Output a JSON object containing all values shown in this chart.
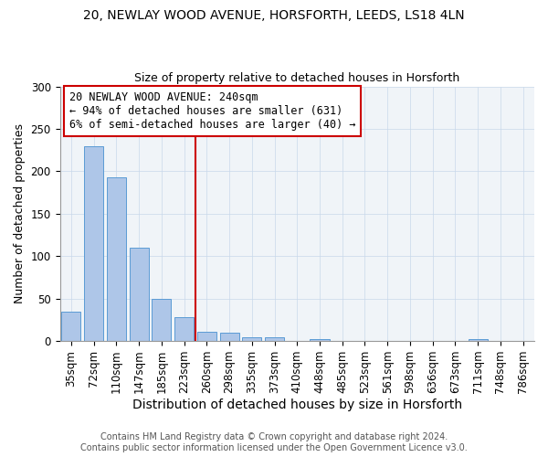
{
  "title1": "20, NEWLAY WOOD AVENUE, HORSFORTH, LEEDS, LS18 4LN",
  "title2": "Size of property relative to detached houses in Horsforth",
  "xlabel": "Distribution of detached houses by size in Horsforth",
  "ylabel": "Number of detached properties",
  "bin_labels": [
    "35sqm",
    "72sqm",
    "110sqm",
    "147sqm",
    "185sqm",
    "223sqm",
    "260sqm",
    "298sqm",
    "335sqm",
    "373sqm",
    "410sqm",
    "448sqm",
    "485sqm",
    "523sqm",
    "561sqm",
    "598sqm",
    "636sqm",
    "673sqm",
    "711sqm",
    "748sqm",
    "786sqm"
  ],
  "bar_heights": [
    35,
    230,
    193,
    110,
    50,
    28,
    11,
    10,
    4,
    4,
    0,
    2,
    0,
    0,
    0,
    0,
    0,
    0,
    2,
    0,
    0
  ],
  "bar_color": "#aec6e8",
  "bar_edgecolor": "#5b9bd5",
  "vline_x_idx": 5.5,
  "vline_color": "#cc0000",
  "annotation_text": "20 NEWLAY WOOD AVENUE: 240sqm\n← 94% of detached houses are smaller (631)\n6% of semi-detached houses are larger (40) →",
  "annotation_box_color": "#ffffff",
  "annotation_box_edgecolor": "#cc0000",
  "footer1": "Contains HM Land Registry data © Crown copyright and database right 2024.",
  "footer2": "Contains public sector information licensed under the Open Government Licence v3.0.",
  "ylim": [
    0,
    300
  ],
  "yticks": [
    0,
    50,
    100,
    150,
    200,
    250,
    300
  ],
  "figsize": [
    6.0,
    5.0
  ],
  "dpi": 100,
  "title1_fontsize": 10,
  "title2_fontsize": 9,
  "xlabel_fontsize": 10,
  "ylabel_fontsize": 9,
  "tick_fontsize": 8.5,
  "footer_fontsize": 7.0
}
